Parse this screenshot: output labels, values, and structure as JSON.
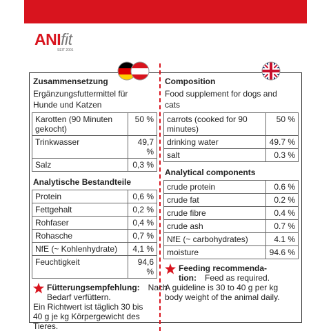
{
  "brand": {
    "name_main": "ANI",
    "name_suffix": "fit",
    "since": "SEIT 2001"
  },
  "columns": [
    {
      "heading": "Zusammensetzung",
      "subheading": "Ergänzungsfuttermittel für Hunde und Katzen",
      "ingredients": [
        {
          "name": "Karotten (90 Minuten gekocht)",
          "amount": "50 %"
        },
        {
          "name": "Trinkwasser",
          "amount": "49,7 %"
        },
        {
          "name": "Salz",
          "amount": "0,3 %"
        }
      ],
      "analysis_heading": "Analytische Bestandteile",
      "analysis": [
        {
          "name": "Protein",
          "amount": "0,6 %"
        },
        {
          "name": "Fettgehalt",
          "amount": "0,2 %"
        },
        {
          "name": "Rohfaser",
          "amount": "0,4 %"
        },
        {
          "name": "Rohasche",
          "amount": "0,7 %"
        },
        {
          "name": "NfE (~ Kohlenhydrate)",
          "amount": "4,1 %"
        },
        {
          "name": "Feuchtigkeit",
          "amount": "94,6 %"
        }
      ],
      "feeding": {
        "title_lines": [
          "Fütterungsempfehlung:"
        ],
        "note": "Nach Bedarf verfüttern.",
        "text": "Ein Richtwert ist täglich 30 bis 40 g je kg Körpergewicht des Tieres."
      }
    },
    {
      "heading": "Composition",
      "subheading": "Food supplement for dogs and cats",
      "ingredients": [
        {
          "name": "carrots (cooked for 90 minutes)",
          "amount": "50 %"
        },
        {
          "name": "drinking water",
          "amount": "49.7 %"
        },
        {
          "name": "salt",
          "amount": "0.3 %"
        }
      ],
      "analysis_heading": "Analytical components",
      "analysis": [
        {
          "name": "crude protein",
          "amount": "0.6 %"
        },
        {
          "name": "crude fat",
          "amount": "0.2 %"
        },
        {
          "name": "crude fibre",
          "amount": "0.4 %"
        },
        {
          "name": "crude ash",
          "amount": "0.7 %"
        },
        {
          "name": "NfE (~ carbohydrates)",
          "amount": "4.1 %"
        },
        {
          "name": "moisture",
          "amount": "94.6 %"
        }
      ],
      "feeding": {
        "title_lines": [
          "Feeding recommenda-",
          "tion:"
        ],
        "note": "Feed as required.",
        "text": "A guideline is 30 to 40 g per kg body weight of the animal daily."
      }
    }
  ]
}
